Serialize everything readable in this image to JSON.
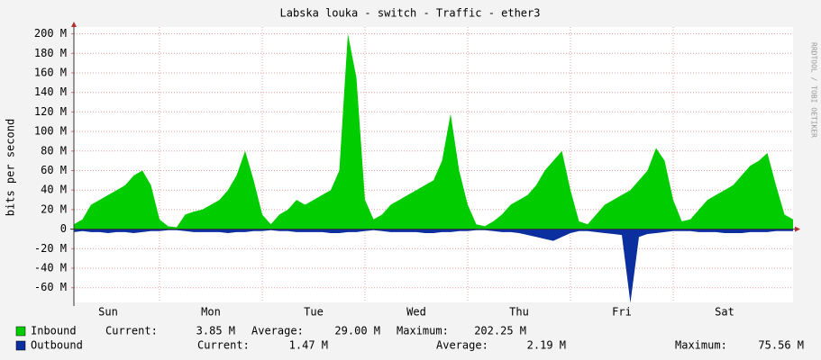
{
  "chart_data": {
    "type": "area",
    "title": "Labska louka - switch - Traffic - ether3",
    "ylabel": "bits per second",
    "watermark": "RRDTOOL / TOBI OETIKER",
    "categories": [
      null,
      null,
      null,
      null,
      "Sun",
      null,
      null,
      null,
      null,
      null,
      null,
      null,
      null,
      null,
      null,
      null,
      "Mon",
      null,
      null,
      null,
      null,
      null,
      null,
      null,
      null,
      null,
      null,
      null,
      "Tue",
      null,
      null,
      null,
      null,
      null,
      null,
      null,
      null,
      null,
      null,
      null,
      "Wed",
      null,
      null,
      null,
      null,
      null,
      null,
      null,
      null,
      null,
      null,
      null,
      "Thu",
      null,
      null,
      null,
      null,
      null,
      null,
      null,
      null,
      null,
      null,
      null,
      "Fri",
      null,
      null,
      null,
      null,
      null,
      null,
      null,
      null,
      null,
      null,
      null,
      "Sat",
      null,
      null,
      null,
      null,
      null,
      null,
      null,
      null
    ],
    "series": [
      {
        "name": "Inbound",
        "color": "#00cc00",
        "values": [
          5,
          10,
          25,
          30,
          35,
          40,
          45,
          55,
          60,
          45,
          10,
          3,
          2,
          15,
          18,
          20,
          25,
          30,
          40,
          55,
          80,
          50,
          15,
          5,
          15,
          20,
          30,
          25,
          30,
          35,
          40,
          60,
          200,
          155,
          30,
          10,
          15,
          25,
          30,
          35,
          40,
          45,
          50,
          70,
          118,
          60,
          25,
          5,
          3,
          8,
          15,
          25,
          30,
          35,
          45,
          60,
          70,
          80,
          40,
          8,
          5,
          15,
          25,
          30,
          35,
          40,
          50,
          60,
          83,
          70,
          30,
          8,
          10,
          20,
          30,
          35,
          40,
          45,
          55,
          65,
          70,
          78,
          45,
          15,
          10
        ],
        "stats": [
          {
            "label": "Current:",
            "value": "3.85 M"
          },
          {
            "label": "Average:",
            "value": "29.00 M"
          },
          {
            "label": "Maximum:",
            "value": "202.25 M"
          }
        ]
      },
      {
        "name": "Outbound",
        "color": "#0b2f9e",
        "values": [
          -3,
          -2,
          -3,
          -3,
          -4,
          -3,
          -3,
          -4,
          -3,
          -2,
          -2,
          -1,
          -1,
          -2,
          -3,
          -3,
          -3,
          -3,
          -4,
          -3,
          -3,
          -2,
          -2,
          -1,
          -2,
          -2,
          -3,
          -3,
          -3,
          -3,
          -4,
          -4,
          -3,
          -3,
          -2,
          -1,
          -2,
          -3,
          -3,
          -3,
          -3,
          -4,
          -4,
          -3,
          -3,
          -2,
          -2,
          -1,
          -1,
          -2,
          -3,
          -3,
          -4,
          -6,
          -8,
          -10,
          -12,
          -8,
          -4,
          -2,
          -2,
          -3,
          -4,
          -5,
          -6,
          -75.56,
          -8,
          -5,
          -4,
          -3,
          -2,
          -2,
          -2,
          -3,
          -3,
          -3,
          -4,
          -4,
          -4,
          -3,
          -3,
          -3,
          -2,
          -2,
          -2
        ],
        "stats": [
          {
            "label": "Current:",
            "value": "1.47 M"
          },
          {
            "label": "Average:",
            "value": "2.19 M"
          },
          {
            "label": "Maximum:",
            "value": "75.56 M"
          }
        ]
      }
    ],
    "ylim": [
      -75,
      207
    ],
    "yticks": [
      {
        "value": -60,
        "label": "-60 M"
      },
      {
        "value": -40,
        "label": "-40 M"
      },
      {
        "value": -20,
        "label": "-20 M"
      },
      0,
      {
        "value": 20,
        "label": "20 M"
      },
      {
        "value": 40,
        "label": "40 M"
      },
      {
        "value": 60,
        "label": "60 M"
      },
      {
        "value": 80,
        "label": "80 M"
      },
      {
        "value": 100,
        "label": "100 M"
      },
      {
        "value": 120,
        "label": "120 M"
      },
      {
        "value": 140,
        "label": "140 M"
      },
      {
        "value": 160,
        "label": "160 M"
      },
      {
        "value": 180,
        "label": "180 M"
      },
      {
        "value": 200,
        "label": "200 M"
      }
    ],
    "grid": true
  }
}
